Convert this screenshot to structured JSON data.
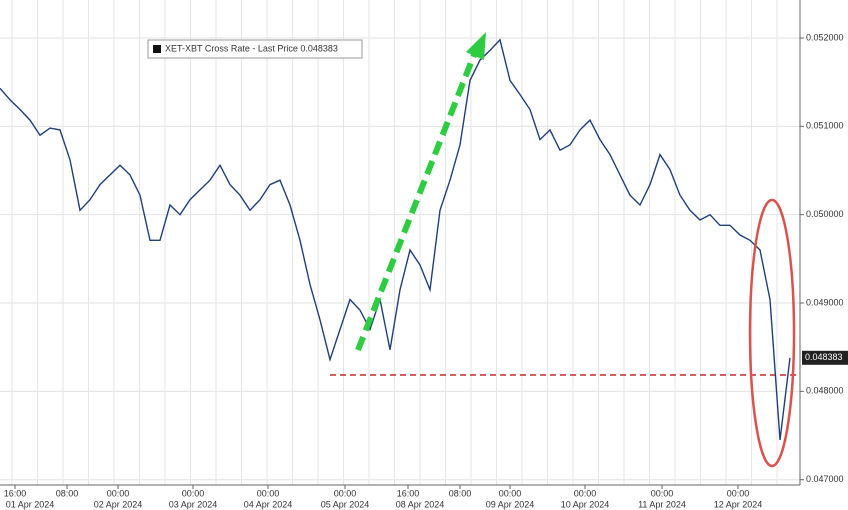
{
  "chart_data": {
    "type": "line",
    "series": [
      {
        "name": "XET-XBT Cross Rate - Last Price 0.048383",
        "color": "#1f3f7a",
        "values": [
          0.05143,
          0.0513,
          0.05119,
          0.05107,
          0.0509,
          0.05098,
          0.05096,
          0.05062,
          0.05005,
          0.05017,
          0.05034,
          0.05045,
          0.05056,
          0.05045,
          0.05022,
          0.04971,
          0.04971,
          0.05011,
          0.05,
          0.05017,
          0.05028,
          0.05039,
          0.05056,
          0.05034,
          0.05022,
          0.05005,
          0.05017,
          0.05034,
          0.05039,
          0.05011,
          0.04971,
          0.04921,
          0.04881,
          0.04836,
          0.0487,
          0.04904,
          0.04892,
          0.0487,
          0.04904,
          0.04847,
          0.04915,
          0.0496,
          0.04943,
          0.04915,
          0.05005,
          0.05039,
          0.05079,
          0.05152,
          0.05175,
          0.05186,
          0.05198,
          0.05152,
          0.05136,
          0.05119,
          0.05085,
          0.05096,
          0.05073,
          0.05079,
          0.05096,
          0.05107,
          0.05085,
          0.05068,
          0.05045,
          0.05022,
          0.05011,
          0.05034,
          0.05068,
          0.05051,
          0.05022,
          0.05005,
          0.04994,
          0.05,
          0.04988,
          0.04988,
          0.04977,
          0.04971,
          0.0496,
          0.04904,
          0.04745,
          0.04838
        ]
      }
    ],
    "last_price_label": "0.048383",
    "ylim": [
      0.04694,
      0.05243
    ],
    "yticks": [
      {
        "value": 0.047,
        "label": "0.047000"
      },
      {
        "value": 0.048,
        "label": "0.048000"
      },
      {
        "value": 0.049,
        "label": "0.049000"
      },
      {
        "value": 0.05,
        "label": "0.050000"
      },
      {
        "value": 0.051,
        "label": "0.051000"
      },
      {
        "value": 0.052,
        "label": "0.052000"
      }
    ],
    "xtick_times": [
      "16:00",
      "08:00",
      "00:00",
      "00:00",
      "00:00",
      "00:00",
      "16:00",
      "08:00",
      "00:00",
      "00:00",
      "00:00",
      "00:00"
    ],
    "xtick_dates": [
      "01 Apr 2024",
      "02 Apr 2024",
      "03 Apr 2024",
      "04 Apr 2024",
      "05 Apr 2024",
      "08 Apr 2024",
      "09 Apr 2024",
      "10 Apr 2024",
      "11 Apr 2024",
      "12 Apr 2024"
    ],
    "grid": true
  }
}
